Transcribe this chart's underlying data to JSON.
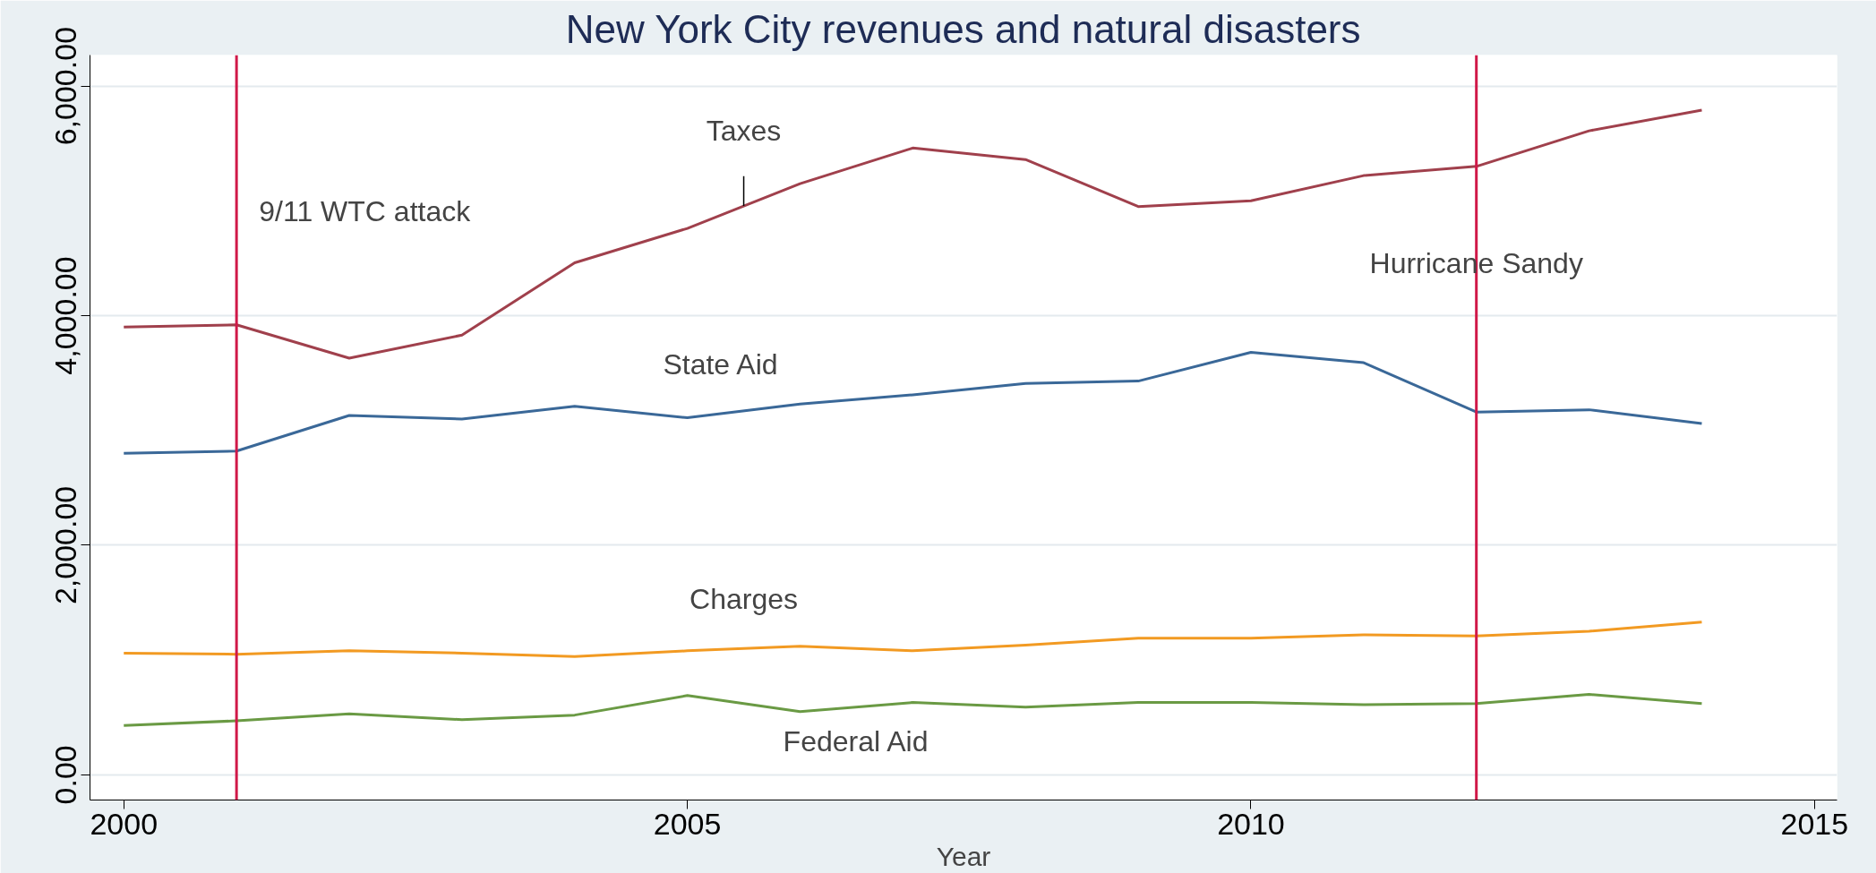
{
  "chart_data": {
    "type": "line",
    "title": "New York City revenues and natural disasters",
    "xlabel": "Year",
    "x": [
      2000,
      2001,
      2002,
      2003,
      2004,
      2005,
      2006,
      2007,
      2008,
      2009,
      2010,
      2011,
      2012,
      2013,
      2014
    ],
    "series": [
      {
        "name": "Taxes",
        "color": "#a0404c",
        "values": [
          3900,
          3920,
          3630,
          3830,
          4460,
          4760,
          5150,
          5460,
          5360,
          4950,
          5000,
          5220,
          5300,
          5610,
          5790
        ]
      },
      {
        "name": "State Aid",
        "color": "#3a6898",
        "values": [
          2800,
          2820,
          3130,
          3100,
          3210,
          3110,
          3230,
          3310,
          3410,
          3430,
          3680,
          3590,
          3160,
          3180,
          3060
        ]
      },
      {
        "name": "Charges",
        "color": "#f29a22",
        "values": [
          1060,
          1050,
          1080,
          1060,
          1030,
          1080,
          1120,
          1080,
          1130,
          1190,
          1190,
          1220,
          1210,
          1250,
          1330
        ]
      },
      {
        "name": "Federal Aid",
        "color": "#6a9a44",
        "values": [
          430,
          470,
          530,
          480,
          520,
          690,
          550,
          630,
          590,
          630,
          630,
          610,
          620,
          700,
          620
        ]
      }
    ],
    "xlim": [
      1999.7,
      2015.2
    ],
    "ylim": [
      -220,
      6270
    ],
    "xticks": [
      2000,
      2005,
      2010,
      2015
    ],
    "yticks": [
      {
        "value": 0,
        "label": "0.00"
      },
      {
        "value": 2000,
        "label": "2,000.00"
      },
      {
        "value": 4000,
        "label": "4,000.00"
      },
      {
        "value": 6000,
        "label": "6,000.00"
      }
    ],
    "grid": "y",
    "legend": false,
    "marker": "none",
    "line_style": "solid",
    "ref_lines": [
      {
        "axis": "x",
        "value": 2001,
        "label": "9/11 WTC attack",
        "color": "#d01848"
      },
      {
        "axis": "x",
        "value": 2012,
        "label": "Hurricane Sandy",
        "color": "#d01848"
      }
    ]
  }
}
